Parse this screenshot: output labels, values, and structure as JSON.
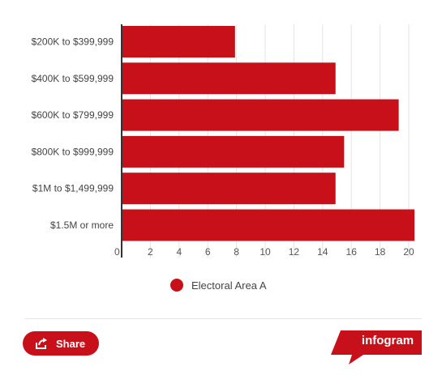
{
  "chart_data": {
    "type": "bar",
    "orientation": "horizontal",
    "categories": [
      "$200K to $399,999",
      "$400K to $599,999",
      "$600K to $799,999",
      "$800K to $999,999",
      "$1M to $1,499,999",
      "$1.5M or more"
    ],
    "series": [
      {
        "name": "Electoral Area A",
        "values": [
          7.9,
          14.9,
          19.3,
          15.5,
          14.9,
          20.4
        ]
      }
    ],
    "x_ticks": [
      "0",
      "2",
      "4",
      "6",
      "8",
      "10",
      "12",
      "14",
      "16",
      "18",
      "20"
    ],
    "xlim": [
      0,
      21
    ],
    "grid": true,
    "legend_position": "bottom",
    "bar_color": "#c8101a"
  },
  "legend": {
    "label": "Electoral Area A",
    "color": "#c8101a"
  },
  "footer": {
    "share_label": "Share",
    "share_icon": "share-icon",
    "brand_label": "infogram",
    "brand_color": "#c8101a"
  }
}
